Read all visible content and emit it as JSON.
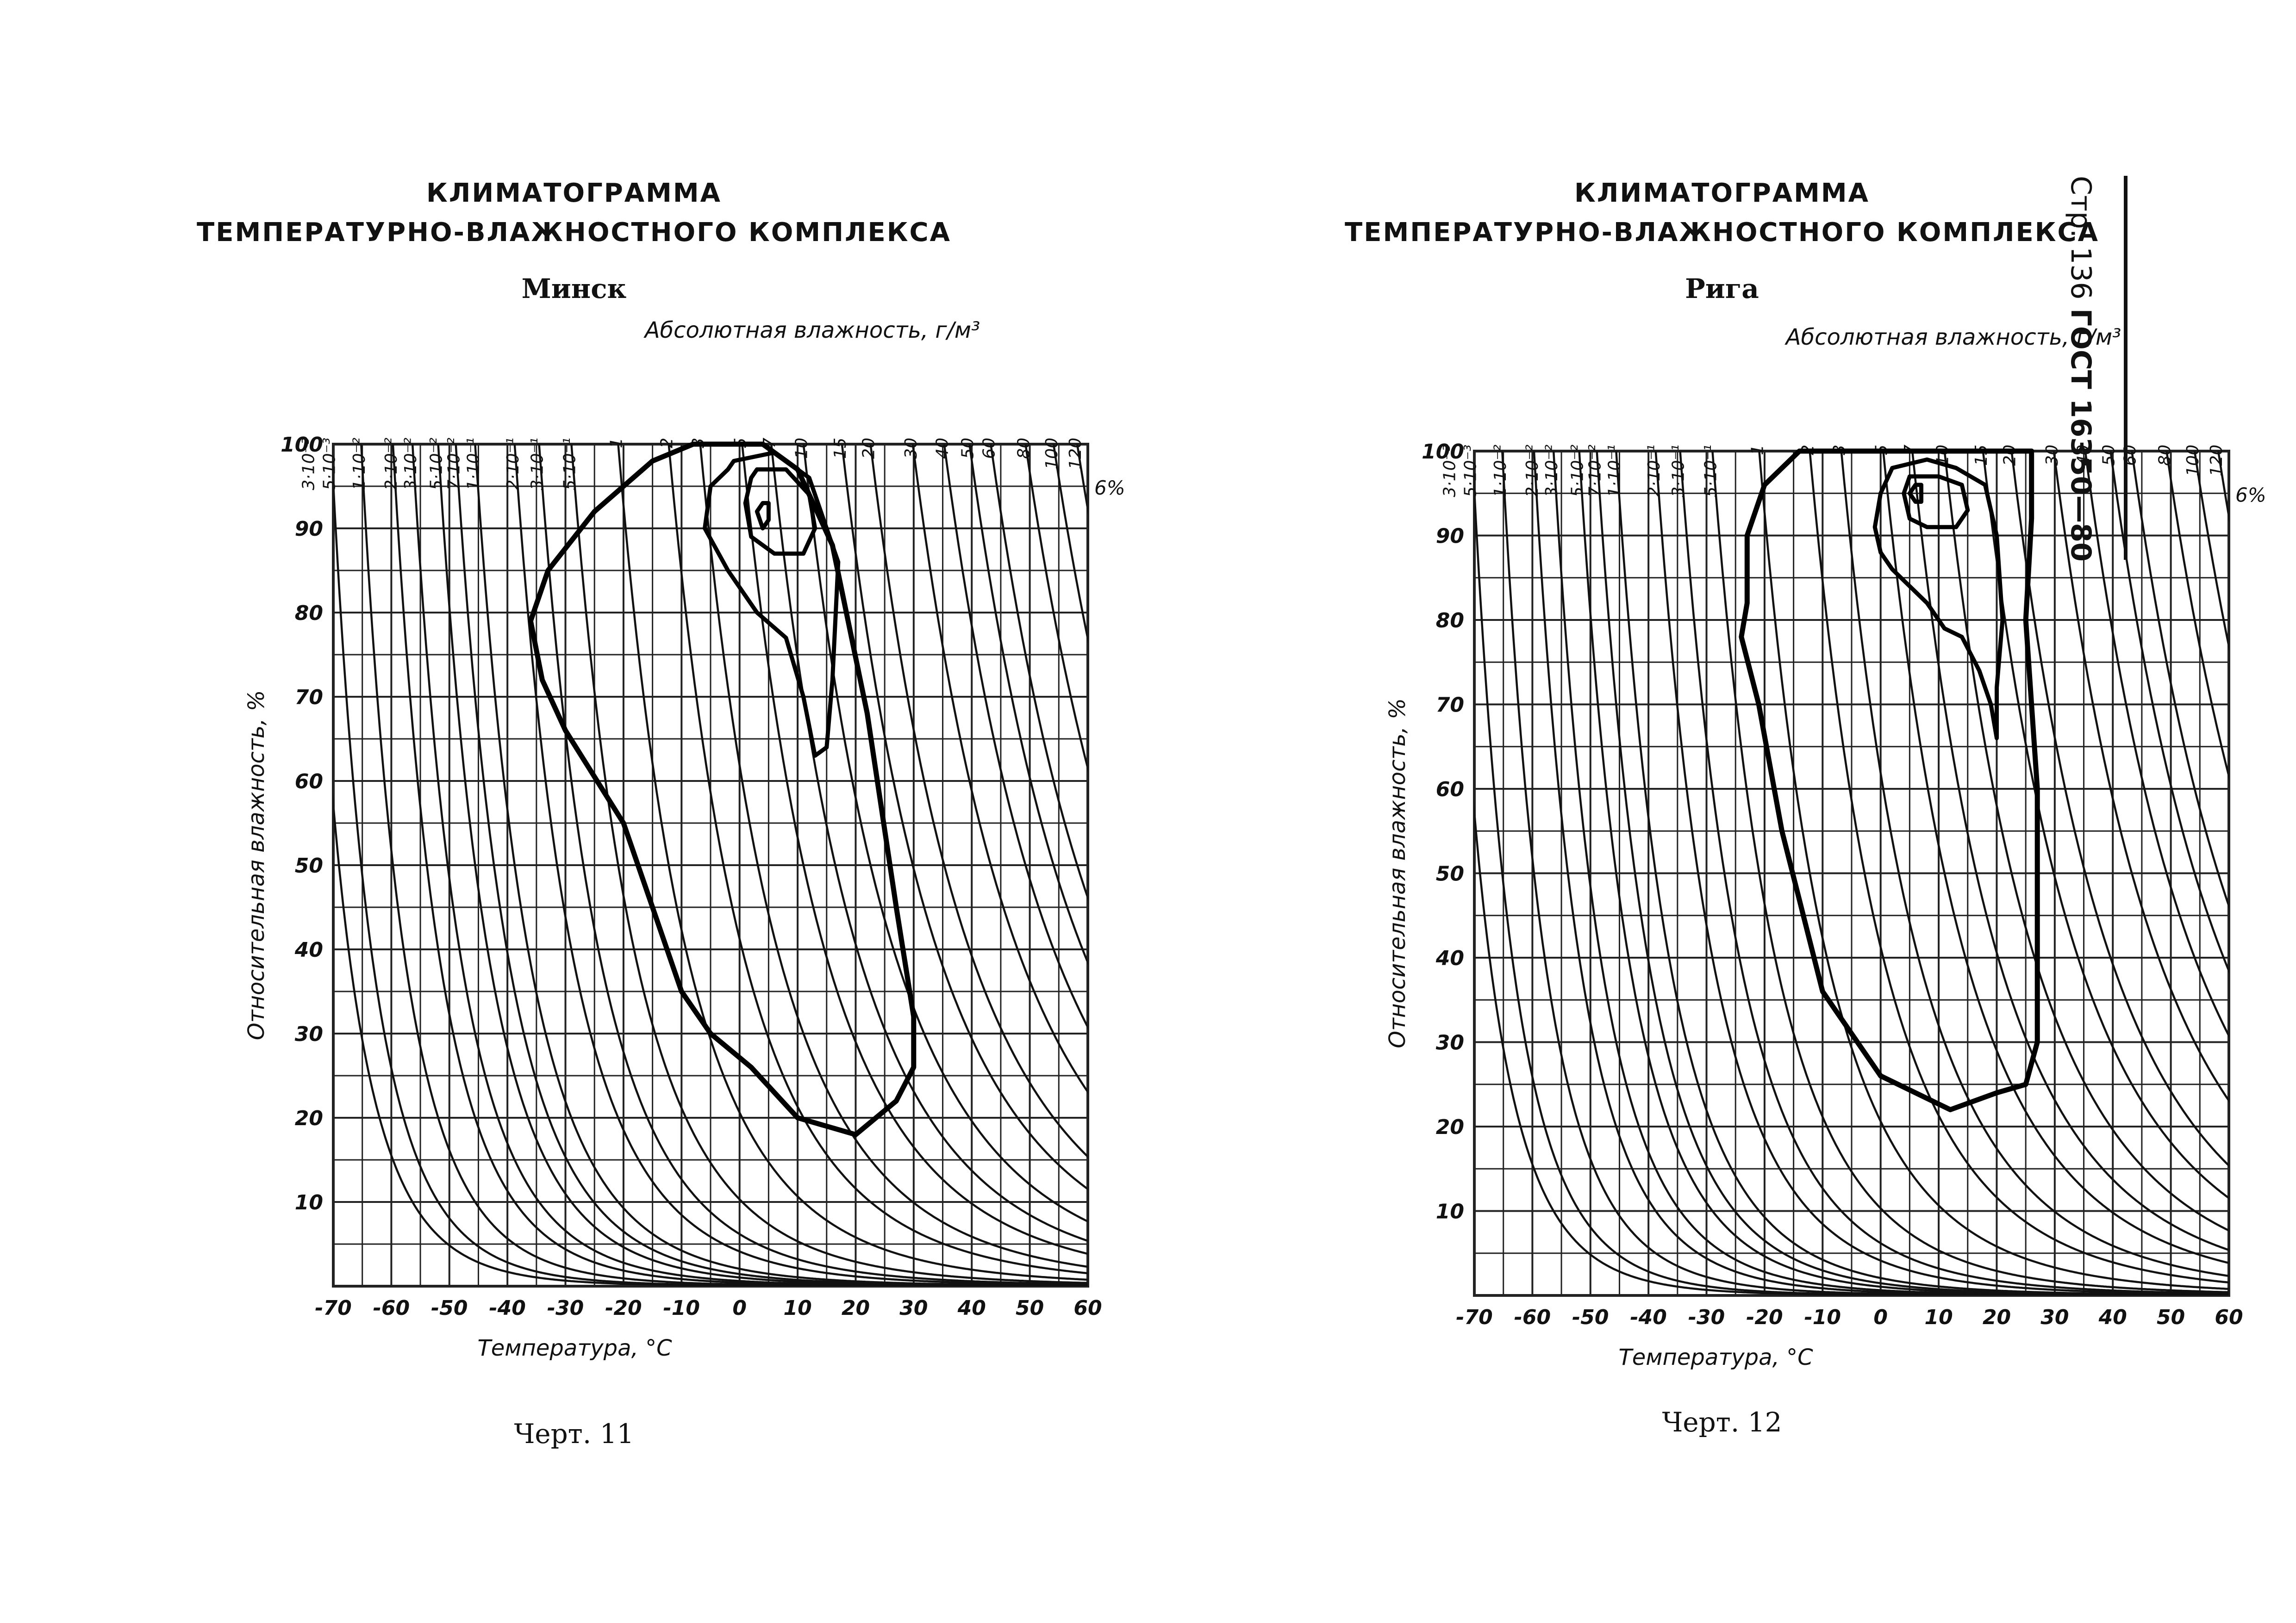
{
  "page_header": {
    "page_label": "Стр. 136",
    "standard": "ГОСТ 16350—80"
  },
  "charts_meta": [
    {
      "title_line1": "КЛИМАТОГРАММА",
      "title_line2": "ТЕМПЕРАТУРНО-ВЛАЖНОСТНОГО КОМПЛЕКСА",
      "city": "Минск",
      "caption": "Черт. 11"
    },
    {
      "title_line1": "КЛИМАТОГРАММА",
      "title_line2": "ТЕМПЕРАТУРНО-ВЛАЖНОСТНОГО КОМПЛЕКСА",
      "city": "Рига",
      "caption": "Черт. 12"
    }
  ],
  "chart_data": [
    {
      "type": "line",
      "title": "КЛИМАТОГРАММА ТЕМПЕРАТУРНО-ВЛАЖНОСТНОГО КОМПЛЕКСА",
      "subtitle": "Минск",
      "xlabel": "Температура, °С",
      "ylabel": "Относительная влажность, %",
      "top_axis_label": "Абсолютная влажность, г/м³",
      "xlim": [
        -70,
        60
      ],
      "ylim": [
        0,
        100
      ],
      "x_ticks": [
        "-70",
        "-60",
        "-50",
        "-40",
        "-30",
        "-20",
        "-10",
        "0",
        "10",
        "20",
        "30",
        "40",
        "50",
        "60"
      ],
      "y_ticks": [
        "100",
        "90",
        "80",
        "70",
        "60",
        "50",
        "40",
        "30",
        "20",
        "10"
      ],
      "abs_humidity_labels": [
        "3·10⁻³",
        "5·10⁻³",
        "1·10⁻²",
        "2·10⁻²",
        "3·10⁻²",
        "5·10⁻²",
        "7·10⁻²",
        "1·10⁻¹",
        "2·10⁻¹",
        "3·10⁻¹",
        "5·10⁻¹",
        "1",
        "2",
        "3",
        "5",
        "7",
        "10",
        "15",
        "20",
        "30",
        "40",
        "50",
        "60",
        "80",
        "100",
        "120"
      ],
      "abs_humidity_values": [
        0.003,
        0.005,
        0.01,
        0.02,
        0.03,
        0.05,
        0.07,
        0.1,
        0.2,
        0.3,
        0.5,
        1,
        2,
        3,
        5,
        7,
        10,
        15,
        20,
        30,
        40,
        50,
        60,
        80,
        100,
        120
      ],
      "note": "6%",
      "grid": true,
      "series": [
        {
          "x": [
            -2,
            4,
            10,
            16,
            22,
            27,
            30,
            30,
            27,
            20,
            10,
            2,
            -5,
            -10,
            -20,
            -30,
            -34,
            -36,
            -33,
            -25,
            -15,
            -8,
            -2
          ],
          "y": [
            100,
            100,
            97,
            88,
            68,
            45,
            32,
            26,
            22,
            18,
            20,
            26,
            30,
            35,
            55,
            66,
            72,
            79,
            85,
            92,
            98,
            100,
            100
          ]
        },
        {
          "x": [
            -1,
            6,
            12,
            17,
            16,
            15,
            13,
            11,
            8,
            3,
            -2,
            -6,
            -5,
            -2,
            -1
          ],
          "y": [
            98,
            99,
            96,
            86,
            72,
            64,
            63,
            70,
            77,
            80,
            85,
            90,
            95,
            97,
            98
          ]
        },
        {
          "x": [
            3,
            8,
            12,
            13,
            11,
            6,
            2,
            1,
            2,
            3
          ],
          "y": [
            97,
            97,
            94,
            90,
            87,
            87,
            89,
            93,
            96,
            97
          ]
        },
        {
          "x": [
            4,
            5,
            5,
            4,
            3,
            4
          ],
          "y": [
            93,
            93,
            91,
            90,
            92,
            93
          ]
        }
      ]
    },
    {
      "type": "line",
      "title": "КЛИМАТОГРАММА ТЕМПЕРАТУРНО-ВЛАЖНОСТНОГО КОМПЛЕКСА",
      "subtitle": "Рига",
      "xlabel": "Температура, °С",
      "ylabel": "Относительная влажность, %",
      "top_axis_label": "Абсолютная влажность, г/м³",
      "xlim": [
        -70,
        60
      ],
      "ylim": [
        0,
        100
      ],
      "x_ticks": [
        "-70",
        "-60",
        "-50",
        "-40",
        "-30",
        "-20",
        "-10",
        "0",
        "10",
        "20",
        "30",
        "40",
        "50",
        "60"
      ],
      "y_ticks": [
        "100",
        "90",
        "80",
        "70",
        "60",
        "50",
        "40",
        "30",
        "20",
        "10"
      ],
      "abs_humidity_labels": [
        "3·10⁻³",
        "5·10⁻³",
        "1·10⁻²",
        "2·10⁻²",
        "3·10⁻²",
        "5·10⁻²",
        "7·10⁻²",
        "1·10⁻¹",
        "2·10⁻¹",
        "3·10⁻¹",
        "5·10⁻¹",
        "1",
        "2",
        "3",
        "5",
        "7",
        "10",
        "15",
        "20",
        "30",
        "40",
        "50",
        "60",
        "80",
        "100",
        "120"
      ],
      "abs_humidity_values": [
        0.003,
        0.005,
        0.01,
        0.02,
        0.03,
        0.05,
        0.07,
        0.1,
        0.2,
        0.3,
        0.5,
        1,
        2,
        3,
        5,
        7,
        10,
        15,
        20,
        30,
        40,
        50,
        60,
        80,
        100,
        120
      ],
      "note": "6%",
      "grid": true,
      "series": [
        {
          "x": [
            -14,
            26,
            26,
            25,
            27,
            27,
            25,
            20,
            12,
            0,
            -10,
            -17,
            -21,
            -24,
            -23,
            -23,
            -20,
            -14
          ],
          "y": [
            100,
            100,
            92,
            80,
            60,
            30,
            25,
            24,
            22,
            26,
            36,
            55,
            70,
            78,
            82,
            90,
            96,
            100
          ]
        },
        {
          "x": [
            2,
            8,
            13,
            18,
            20,
            21,
            20,
            20,
            19,
            17,
            14,
            11,
            8,
            5,
            2,
            0,
            -1,
            0,
            2
          ],
          "y": [
            98,
            99,
            98,
            96,
            90,
            80,
            72,
            66,
            70,
            74,
            78,
            79,
            82,
            84,
            86,
            88,
            91,
            95,
            98
          ]
        },
        {
          "x": [
            5,
            10,
            14,
            15,
            13,
            8,
            5,
            4,
            5
          ],
          "y": [
            97,
            97,
            96,
            93,
            91,
            91,
            92,
            95,
            97
          ]
        },
        {
          "x": [
            6,
            7,
            7,
            6,
            5,
            6
          ],
          "y": [
            96,
            96,
            94,
            94,
            95,
            96
          ]
        }
      ]
    }
  ]
}
